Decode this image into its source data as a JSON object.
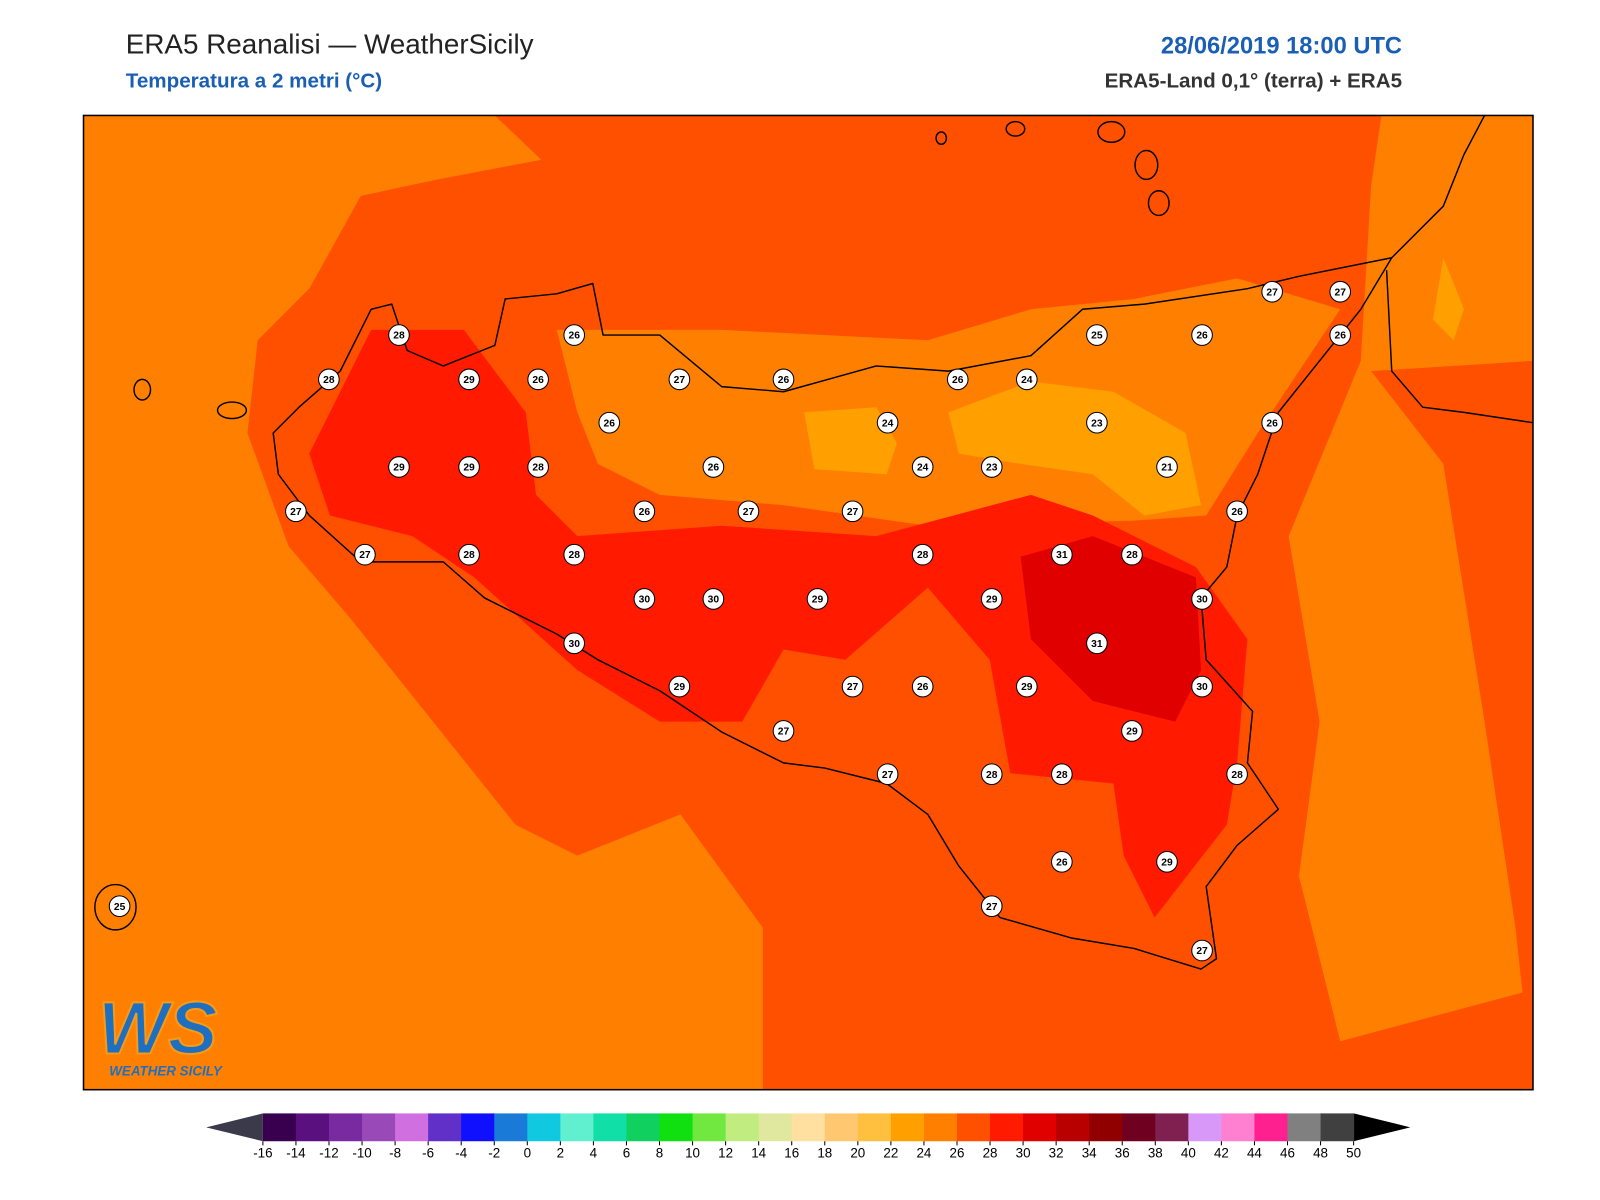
{
  "header": {
    "title": "ERA5 Reanalisi — WeatherSicily",
    "subtitle": "Temperatura a 2 metri (°C)",
    "datetime": "28/06/2019 18:00 UTC",
    "source": "ERA5-Land 0,1° (terra) + ERA5"
  },
  "stations": [
    28,
    26,
    28,
    29,
    26,
    27,
    26,
    26,
    29,
    29,
    28,
    26,
    27,
    26,
    27,
    27,
    27,
    28,
    28,
    30,
    30,
    29,
    30,
    29,
    27,
    27,
    26,
    27,
    28,
    29,
    29,
    28,
    28,
    31,
    28,
    31,
    30,
    30,
    29,
    28,
    26,
    29,
    27,
    27,
    25,
    25,
    26,
    26,
    27,
    27,
    26,
    24,
    24,
    23,
    26,
    24,
    23,
    21,
    26
  ],
  "colorbar": {
    "levels": [
      -16,
      -14,
      -12,
      -10,
      -8,
      -6,
      -4,
      -2,
      0,
      2,
      4,
      6,
      8,
      10,
      12,
      14,
      16,
      18,
      20,
      22,
      24,
      26,
      28,
      30,
      32,
      34,
      36,
      38,
      40,
      42,
      44,
      46,
      48,
      50
    ],
    "colors": [
      "#3a0050",
      "#5b1080",
      "#7a2aa0",
      "#9a4ab8",
      "#d070e0",
      "#6030c8",
      "#1010ff",
      "#1a7ad8",
      "#10c8e0",
      "#60f0d0",
      "#10e0a8",
      "#10d060",
      "#10e010",
      "#70e840",
      "#c0ec80",
      "#e0e8a0",
      "#ffe0a0",
      "#ffc870",
      "#ffc040",
      "#ffa000",
      "#ff8000",
      "#ff5000",
      "#ff1a00",
      "#e00000",
      "#b80000",
      "#900000",
      "#700020",
      "#802050",
      "#d898f8",
      "#ff80d0",
      "#ff2090",
      "#808080",
      "#404040"
    ],
    "under_color": "#3a3a4a",
    "over_color": "#000000"
  },
  "logo": {
    "mark": "WS",
    "name": "WEATHER SICILY"
  }
}
